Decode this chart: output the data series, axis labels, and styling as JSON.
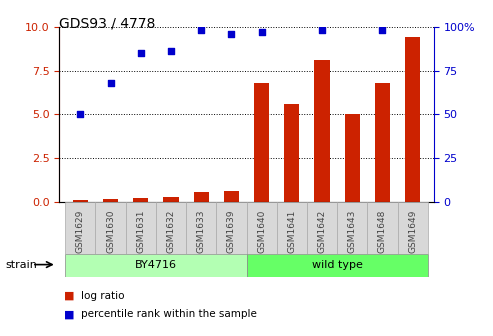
{
  "title": "GDS93 / 4778",
  "samples": [
    "GSM1629",
    "GSM1630",
    "GSM1631",
    "GSM1632",
    "GSM1633",
    "GSM1639",
    "GSM1640",
    "GSM1641",
    "GSM1642",
    "GSM1643",
    "GSM1648",
    "GSM1649"
  ],
  "log_ratio": [
    0.1,
    0.15,
    0.2,
    0.25,
    0.55,
    0.6,
    6.8,
    5.6,
    8.1,
    5.0,
    6.8,
    9.4
  ],
  "percentile_rank": [
    5.0,
    6.8,
    8.5,
    8.6,
    9.8,
    9.6,
    9.7,
    null,
    9.8,
    null,
    9.8,
    null
  ],
  "strain_groups": [
    {
      "label": "BY4716",
      "start": 0,
      "end": 6,
      "color": "#b3ffb3"
    },
    {
      "label": "wild type",
      "start": 6,
      "end": 12,
      "color": "#66ff66"
    }
  ],
  "ylim_left": [
    0,
    10
  ],
  "ylim_right": [
    0,
    100
  ],
  "yticks_left": [
    0,
    2.5,
    5.0,
    7.5,
    10
  ],
  "yticks_right": [
    0,
    25,
    50,
    75,
    100
  ],
  "bar_color": "#cc2200",
  "scatter_color": "#0000cc",
  "background_color": "#ffffff",
  "xlabel_color": "#444444",
  "left_axis_color": "#cc2200",
  "right_axis_color": "#0000cc",
  "legend_log_ratio": "log ratio",
  "legend_percentile": "percentile rank within the sample",
  "strain_label": "strain"
}
